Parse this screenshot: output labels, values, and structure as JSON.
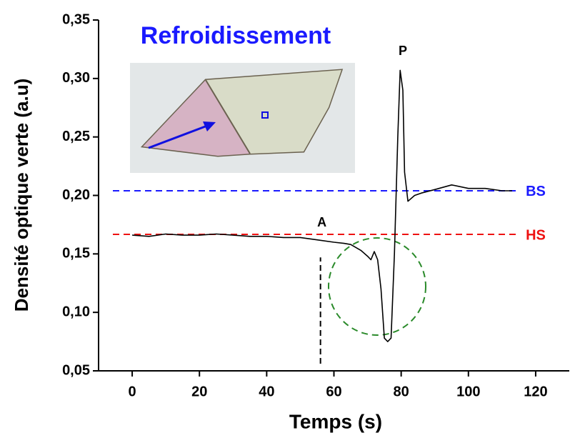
{
  "chart_data": {
    "type": "line",
    "title": "Refroidissement",
    "x_label": "Temps (s)",
    "y_label": "Densité optique verte (a.u)",
    "x": [
      0,
      5,
      10,
      15,
      20,
      25,
      30,
      35,
      40,
      45,
      50,
      55,
      60,
      63,
      65,
      68,
      70,
      71,
      72,
      73,
      74,
      75,
      76,
      77,
      78,
      79,
      79.7,
      80.5,
      81,
      82,
      84,
      86,
      90,
      95,
      100,
      105,
      110,
      113
    ],
    "values": [
      0.166,
      0.165,
      0.167,
      0.166,
      0.166,
      0.167,
      0.166,
      0.165,
      0.165,
      0.164,
      0.164,
      0.162,
      0.16,
      0.159,
      0.158,
      0.153,
      0.148,
      0.145,
      0.152,
      0.145,
      0.12,
      0.078,
      0.075,
      0.078,
      0.15,
      0.25,
      0.307,
      0.29,
      0.22,
      0.195,
      0.2,
      0.202,
      0.205,
      0.209,
      0.206,
      0.206,
      0.204,
      0.204
    ],
    "color": "#000000",
    "xlim": [
      -10,
      130
    ],
    "xticks": [
      0,
      20,
      40,
      60,
      80,
      100,
      120
    ],
    "ylim": [
      0.05,
      0.35
    ],
    "yticks": [
      {
        "value": 0.05,
        "label": "0,05"
      },
      {
        "value": 0.1,
        "label": "0,10"
      },
      {
        "value": 0.15,
        "label": "0,15"
      },
      {
        "value": 0.2,
        "label": "0,20"
      },
      {
        "value": 0.25,
        "label": "0,25"
      },
      {
        "value": 0.3,
        "label": "0,30"
      },
      {
        "value": 0.35,
        "label": "0,35"
      }
    ],
    "reference_lines": [
      {
        "label": "BS",
        "value": 0.204,
        "color": "#1a1aff"
      },
      {
        "label": "HS",
        "value": 0.1667,
        "color": "#ee1111"
      }
    ],
    "annotations": [
      {
        "label": "A",
        "x": 56,
        "y": 0.147
      },
      {
        "label": "P"
      }
    ]
  }
}
